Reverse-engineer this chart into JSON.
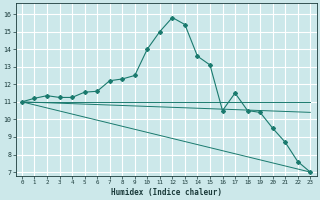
{
  "xlabel": "Humidex (Indice chaleur)",
  "bg_color": "#cce8ea",
  "grid_color": "#ffffff",
  "line_color": "#1a7a6e",
  "xlim": [
    -0.5,
    23.5
  ],
  "ylim": [
    6.8,
    16.6
  ],
  "yticks": [
    7,
    8,
    9,
    10,
    11,
    12,
    13,
    14,
    15,
    16
  ],
  "xticks": [
    0,
    1,
    2,
    3,
    4,
    5,
    6,
    7,
    8,
    9,
    10,
    11,
    12,
    13,
    14,
    15,
    16,
    17,
    18,
    19,
    20,
    21,
    22,
    23
  ],
  "line1_x": [
    0,
    1,
    2,
    3,
    4,
    5,
    6,
    7,
    8,
    9,
    10,
    11,
    12,
    13,
    14,
    15,
    16,
    17,
    18,
    19,
    20,
    21,
    22,
    23
  ],
  "line1_y": [
    11.0,
    11.2,
    11.35,
    11.25,
    11.25,
    11.55,
    11.6,
    12.2,
    12.3,
    12.5,
    14.0,
    15.0,
    15.8,
    15.4,
    13.6,
    13.1,
    10.5,
    11.5,
    10.5,
    10.4,
    9.5,
    8.7,
    7.6,
    7.0
  ],
  "line2_x": [
    0,
    23
  ],
  "line2_y": [
    11.0,
    11.0
  ],
  "line3_x": [
    0,
    23
  ],
  "line3_y": [
    11.0,
    10.4
  ],
  "line4_x": [
    0,
    23
  ],
  "line4_y": [
    11.0,
    7.0
  ]
}
